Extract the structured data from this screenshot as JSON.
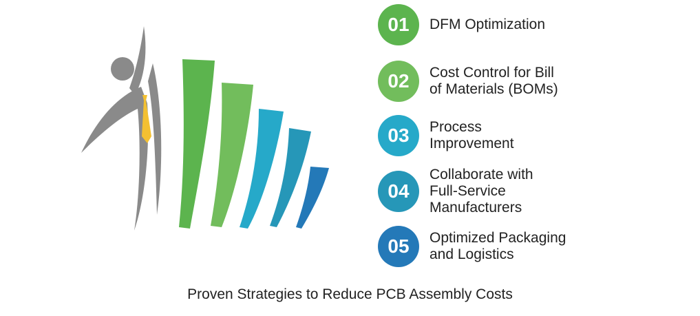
{
  "steps": [
    {
      "number": "01",
      "label": "DFM Optimization",
      "color": "#5cb44e"
    },
    {
      "number": "02",
      "label": "Cost Control for Bill\nof Materials (BOMs)",
      "color": "#72bd5c"
    },
    {
      "number": "03",
      "label": "Process\nImprovement",
      "color": "#26a9c9"
    },
    {
      "number": "04",
      "label": "Collaborate with\nFull-Service\nManufacturers",
      "color": "#2697b8"
    },
    {
      "number": "05",
      "label": "Optimized Packaging\nand Logistics",
      "color": "#2479b8"
    }
  ],
  "caption": "Proven Strategies to Reduce PCB Assembly Costs",
  "illustration": {
    "figure_color": "#8a8a8a",
    "tie_color": "#f3c032",
    "bar_colors": [
      "#5cb44e",
      "#72bd5c",
      "#26a9c9",
      "#2697b8",
      "#2479b8"
    ]
  }
}
